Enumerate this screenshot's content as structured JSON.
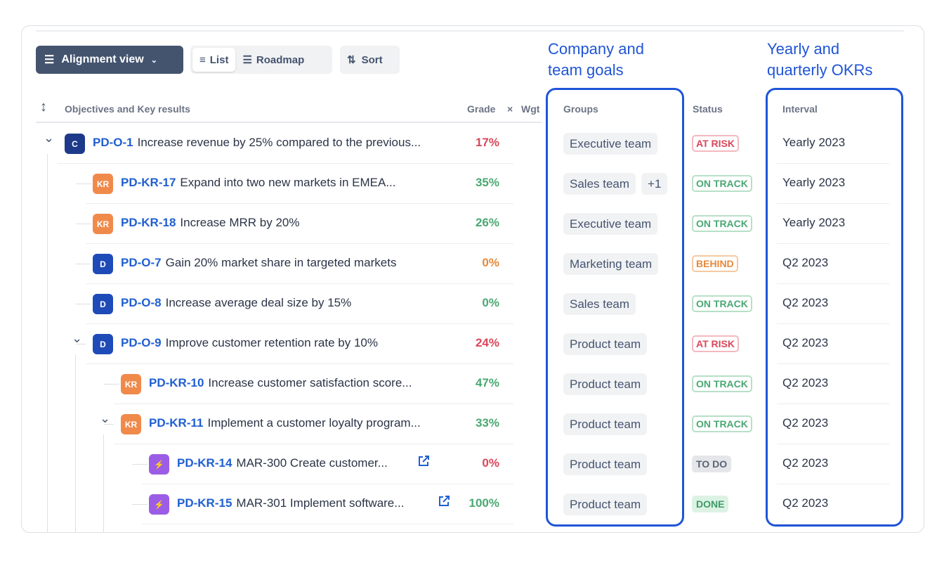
{
  "toolbar": {
    "alignment_view": "Alignment view",
    "list": "List",
    "roadmap": "Roadmap",
    "sort": "Sort"
  },
  "headers": {
    "okr": "Objectives and Key results",
    "grade": "Grade",
    "x": "×",
    "wgt": "Wgt",
    "groups": "Groups",
    "status": "Status",
    "interval": "Interval"
  },
  "callouts": {
    "groups_line1": "Company and",
    "groups_line2": "team goals",
    "interval_line1": "Yearly and",
    "interval_line2": "quarterly OKRs"
  },
  "colors": {
    "accent": "#1f55d6",
    "red": "#d9475a",
    "green": "#4aa873",
    "orange": "#e6893a",
    "purple": "#9b5de5"
  },
  "rows": [
    {
      "level": 0,
      "expand": true,
      "badge": "C",
      "badge_color": "#1d3a8a",
      "key": "PD-O-1",
      "title": "Increase revenue by 25% compared to the previous...",
      "grade": "17%",
      "grade_color": "#d9475a",
      "groups": [
        "Executive team"
      ],
      "status": "AT RISK",
      "status_type": "risk",
      "interval": "Yearly 2023"
    },
    {
      "level": 1,
      "badge": "KR",
      "badge_color": "#f08a4b",
      "key": "PD-KR-17",
      "title": "Expand into two new markets in EMEA...",
      "grade": "35%",
      "grade_color": "#4aa873",
      "groups": [
        "Sales team",
        "+1"
      ],
      "status": "ON TRACK",
      "status_type": "track",
      "interval": "Yearly 2023"
    },
    {
      "level": 1,
      "badge": "KR",
      "badge_color": "#f08a4b",
      "key": "PD-KR-18",
      "title": "Increase MRR by 20%",
      "grade": "26%",
      "grade_color": "#4aa873",
      "groups": [
        "Executive team"
      ],
      "status": "ON TRACK",
      "status_type": "track",
      "interval": "Yearly 2023"
    },
    {
      "level": 1,
      "badge": "D",
      "badge_color": "#1e4bb8",
      "key": "PD-O-7",
      "title": "Gain 20% market share in targeted markets",
      "grade": "0%",
      "grade_color": "#e6893a",
      "groups": [
        "Marketing team"
      ],
      "status": "BEHIND",
      "status_type": "behind",
      "interval": "Q2 2023"
    },
    {
      "level": 1,
      "badge": "D",
      "badge_color": "#1e4bb8",
      "key": "PD-O-8",
      "title": "Increase average deal size by 15%",
      "grade": "0%",
      "grade_color": "#4aa873",
      "groups": [
        "Sales team"
      ],
      "status": "ON TRACK",
      "status_type": "track",
      "interval": "Q2 2023"
    },
    {
      "level": 1,
      "expand": true,
      "badge": "D",
      "badge_color": "#1e4bb8",
      "key": "PD-O-9",
      "title": "Improve customer retention rate by 10%",
      "grade": "24%",
      "grade_color": "#d9475a",
      "groups": [
        "Product team"
      ],
      "status": "AT RISK",
      "status_type": "risk",
      "interval": "Q2 2023"
    },
    {
      "level": 2,
      "badge": "KR",
      "badge_color": "#f08a4b",
      "key": "PD-KR-10",
      "title": "Increase customer satisfaction score...",
      "grade": "47%",
      "grade_color": "#4aa873",
      "groups": [
        "Product team"
      ],
      "status": "ON TRACK",
      "status_type": "track",
      "interval": "Q2 2023"
    },
    {
      "level": 2,
      "expand": true,
      "badge": "KR",
      "badge_color": "#f08a4b",
      "key": "PD-KR-11",
      "title": "Implement a customer loyalty program...",
      "grade": "33%",
      "grade_color": "#4aa873",
      "groups": [
        "Product team"
      ],
      "status": "ON TRACK",
      "status_type": "track",
      "interval": "Q2 2023"
    },
    {
      "level": 3,
      "badge": "⚡",
      "badge_color": "#9b5de5",
      "key": "PD-KR-14",
      "title": "MAR-300 Create customer...",
      "link": true,
      "grade": "0%",
      "grade_color": "#d9475a",
      "groups": [
        "Product team"
      ],
      "status": "TO DO",
      "status_type": "todo",
      "interval": "Q2 2023"
    },
    {
      "level": 3,
      "badge": "⚡",
      "badge_color": "#9b5de5",
      "key": "PD-KR-15",
      "title": "MAR-301 Implement software...",
      "link": true,
      "grade": "100%",
      "grade_color": "#4aa873",
      "groups": [
        "Product team"
      ],
      "status": "DONE",
      "status_type": "done",
      "interval": "Q2 2023"
    }
  ]
}
